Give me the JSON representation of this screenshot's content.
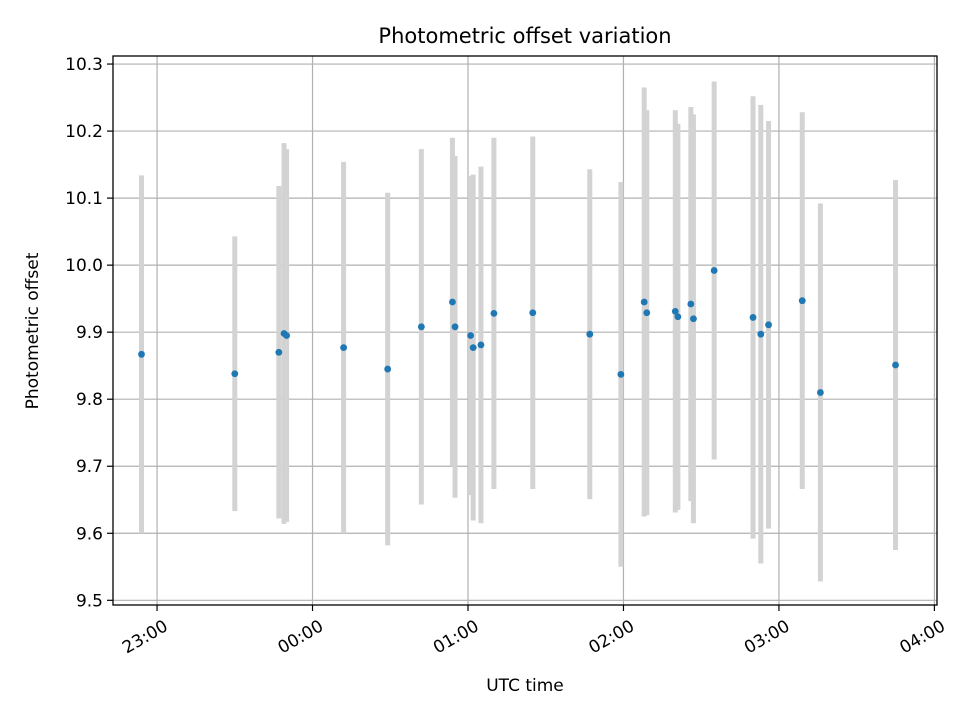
{
  "chart_data": {
    "type": "scatter",
    "title": "Photometric offset variation",
    "xlabel": "UTC time",
    "ylabel": "Photometric offset",
    "x_type": "time",
    "xlim": [
      "22:43",
      "04:01"
    ],
    "ylim": [
      9.493,
      10.312
    ],
    "xticks": [
      "23:00",
      "00:00",
      "01:00",
      "02:00",
      "03:00",
      "04:00"
    ],
    "yticks": [
      "9.5",
      "9.6",
      "9.7",
      "9.8",
      "9.9",
      "10.0",
      "10.1",
      "10.2",
      "10.3"
    ],
    "grid": true,
    "marker_color": "#1f77b4",
    "errorbar_color": "#d3d3d3",
    "points": [
      {
        "t": "22:54",
        "y": 9.867,
        "err": 0.267
      },
      {
        "t": "23:30",
        "y": 9.838,
        "err": 0.205
      },
      {
        "t": "23:47",
        "y": 9.87,
        "err": 0.248
      },
      {
        "t": "23:49",
        "y": 9.898,
        "err": 0.284
      },
      {
        "t": "23:50",
        "y": 9.895,
        "err": 0.278
      },
      {
        "t": "00:12",
        "y": 9.877,
        "err": 0.277
      },
      {
        "t": "00:29",
        "y": 9.845,
        "err": 0.263
      },
      {
        "t": "00:42",
        "y": 9.908,
        "err": 0.265
      },
      {
        "t": "00:54",
        "y": 9.945,
        "err": 0.245
      },
      {
        "t": "00:55",
        "y": 9.908,
        "err": 0.255
      },
      {
        "t": "01:01",
        "y": 9.895,
        "err": 0.238
      },
      {
        "t": "01:02",
        "y": 9.877,
        "err": 0.258
      },
      {
        "t": "01:05",
        "y": 9.881,
        "err": 0.266
      },
      {
        "t": "01:10",
        "y": 9.928,
        "err": 0.262
      },
      {
        "t": "01:25",
        "y": 9.929,
        "err": 0.263
      },
      {
        "t": "01:47",
        "y": 9.897,
        "err": 0.246
      },
      {
        "t": "01:59",
        "y": 9.837,
        "err": 0.287
      },
      {
        "t": "02:08",
        "y": 9.945,
        "err": 0.32
      },
      {
        "t": "02:09",
        "y": 9.929,
        "err": 0.302
      },
      {
        "t": "02:20",
        "y": 9.931,
        "err": 0.3
      },
      {
        "t": "02:21",
        "y": 9.923,
        "err": 0.288
      },
      {
        "t": "02:26",
        "y": 9.942,
        "err": 0.294
      },
      {
        "t": "02:27",
        "y": 9.92,
        "err": 0.305
      },
      {
        "t": "02:35",
        "y": 9.992,
        "err": 0.282
      },
      {
        "t": "02:50",
        "y": 9.922,
        "err": 0.33
      },
      {
        "t": "02:53",
        "y": 9.897,
        "err": 0.342
      },
      {
        "t": "02:56",
        "y": 9.911,
        "err": 0.304
      },
      {
        "t": "03:09",
        "y": 9.947,
        "err": 0.281
      },
      {
        "t": "03:16",
        "y": 9.81,
        "err": 0.282
      },
      {
        "t": "03:45",
        "y": 9.851,
        "err": 0.276
      }
    ]
  }
}
